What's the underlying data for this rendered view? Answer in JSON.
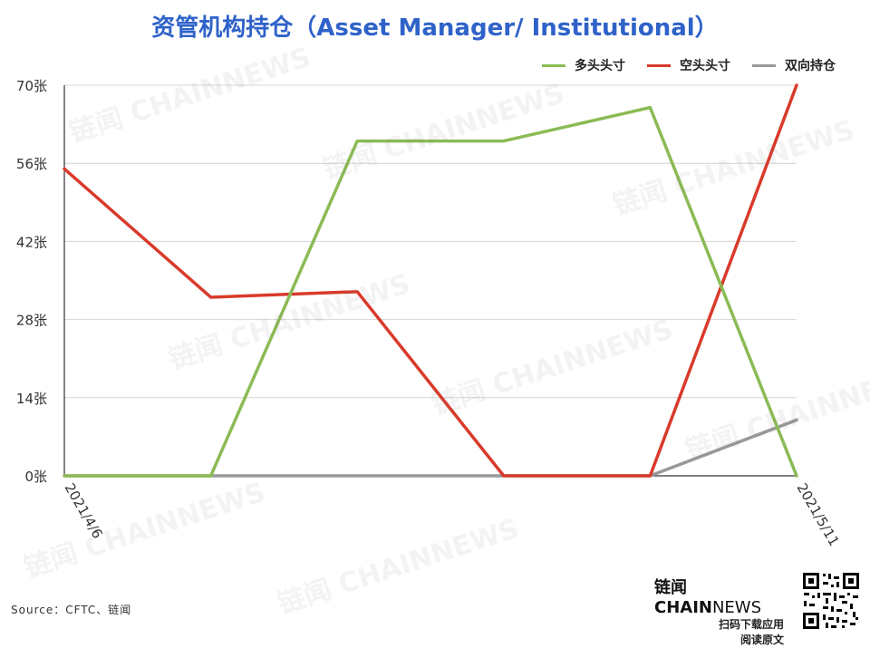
{
  "title": "资管机构持仓（Asset Manager/ Institutional）",
  "legend": [
    {
      "label": "多头头寸",
      "color": "#8bbb55"
    },
    {
      "label": "空头头寸",
      "color": "#d93a2b"
    },
    {
      "label": "双向持仓",
      "color": "#999999"
    }
  ],
  "source": "Source：CFTC、链闻",
  "brand": {
    "name_cn": "链闻",
    "name_chain": "CHAIN",
    "name_news": "NEWS",
    "line1": "扫码下载应用",
    "line2": "阅读原文"
  },
  "watermark_text": "链闻 CHAINNEWS",
  "chart_data": {
    "type": "line",
    "title": "资管机构持仓（Asset Manager/ Institutional）",
    "x": [
      "2021/4/6",
      "",
      "",
      "",
      "",
      "2021/5/11"
    ],
    "x_tick_labels": [
      "2021/4/6",
      "2021/5/11"
    ],
    "y_tick_labels": [
      "0张",
      "14张",
      "28张",
      "42张",
      "56张",
      "70张"
    ],
    "ylim": [
      0,
      70
    ],
    "grid": true,
    "legend_position": "top-right",
    "series": [
      {
        "name": "多头头寸",
        "color": "#8bbb55",
        "values": [
          0,
          0,
          60,
          60,
          66,
          0
        ]
      },
      {
        "name": "空头头寸",
        "color": "#d93a2b",
        "values": [
          55,
          32,
          33,
          0,
          0,
          70
        ]
      },
      {
        "name": "双向持仓",
        "color": "#999999",
        "values": [
          0,
          0,
          0,
          0,
          0,
          10
        ]
      }
    ]
  }
}
